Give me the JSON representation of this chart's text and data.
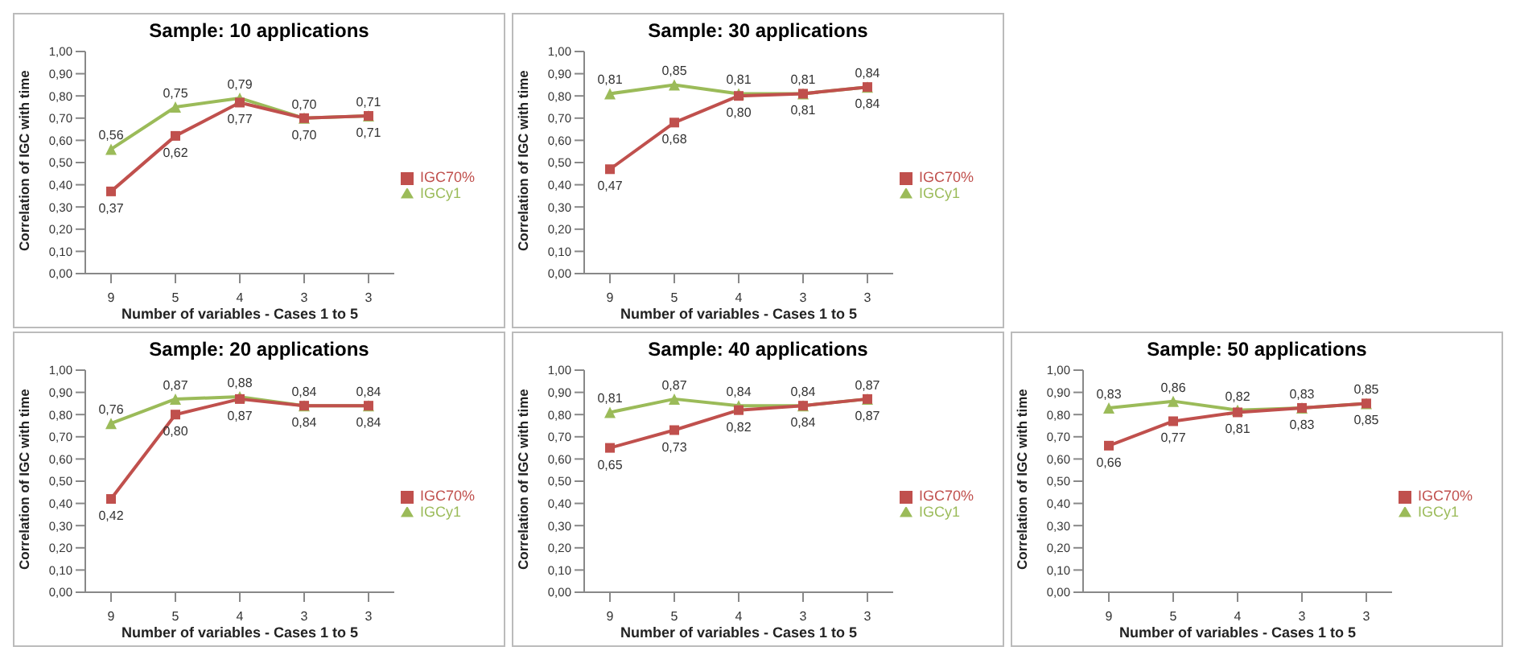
{
  "chart_data": [
    {
      "type": "line",
      "title": "Sample: 10 applications",
      "xlabel": "Number of variables - Cases 1 to 5",
      "ylabel": "Correlation of IGC with time",
      "categories": [
        "9",
        "5",
        "4",
        "3",
        "3"
      ],
      "ylim": [
        0,
        1
      ],
      "yticks": [
        {
          "value": 0,
          "label": "0,00"
        },
        {
          "value": 0.1,
          "label": "0,10"
        },
        {
          "value": 0.2,
          "label": "0,20"
        },
        {
          "value": 0.3,
          "label": "0,30"
        },
        {
          "value": 0.4,
          "label": "0,40"
        },
        {
          "value": 0.5,
          "label": "0,50"
        },
        {
          "value": 0.6,
          "label": "0,60"
        },
        {
          "value": 0.7,
          "label": "0,70"
        },
        {
          "value": 0.8,
          "label": "0,80"
        },
        {
          "value": 0.9,
          "label": "0,90"
        },
        {
          "value": 1,
          "label": "1,00"
        }
      ],
      "legend": "right",
      "series": [
        {
          "name": "IGCy1",
          "color": "#9bbb59",
          "marker": "triangle",
          "values": [
            0.56,
            0.75,
            0.79,
            0.7,
            0.71
          ],
          "value_labels": [
            "0,56",
            "0,75",
            "0,79",
            "0,70",
            "0,71"
          ]
        },
        {
          "name": "IGC70%",
          "color": "#c0504d",
          "marker": "square",
          "values": [
            0.37,
            0.62,
            0.77,
            0.7,
            0.71
          ],
          "value_labels": [
            "0,37",
            "0,62",
            "0,77",
            "0,70",
            "0,71"
          ]
        }
      ]
    },
    {
      "type": "line",
      "title": "Sample: 30 applications",
      "xlabel": "Number of variables - Cases 1 to 5",
      "ylabel": "Correlation of IGC with time",
      "categories": [
        "9",
        "5",
        "4",
        "3",
        "3"
      ],
      "ylim": [
        0,
        1
      ],
      "yticks": [
        {
          "value": 0,
          "label": "0,00"
        },
        {
          "value": 0.1,
          "label": "0,10"
        },
        {
          "value": 0.2,
          "label": "0,20"
        },
        {
          "value": 0.3,
          "label": "0,30"
        },
        {
          "value": 0.4,
          "label": "0,40"
        },
        {
          "value": 0.5,
          "label": "0,50"
        },
        {
          "value": 0.6,
          "label": "0,60"
        },
        {
          "value": 0.7,
          "label": "0,70"
        },
        {
          "value": 0.8,
          "label": "0,80"
        },
        {
          "value": 0.9,
          "label": "0,90"
        },
        {
          "value": 1,
          "label": "1,00"
        }
      ],
      "legend": "right",
      "series": [
        {
          "name": "IGCy1",
          "color": "#9bbb59",
          "marker": "triangle",
          "values": [
            0.81,
            0.85,
            0.81,
            0.81,
            0.84
          ],
          "value_labels": [
            "0,81",
            "0,85",
            "0,81",
            "0,81",
            "0,84"
          ]
        },
        {
          "name": "IGC70%",
          "color": "#c0504d",
          "marker": "square",
          "values": [
            0.47,
            0.68,
            0.8,
            0.81,
            0.84
          ],
          "value_labels": [
            "0,47",
            "0,68",
            "0,80",
            "0,81",
            "0,84"
          ]
        }
      ]
    },
    {
      "type": "line",
      "title": "Sample: 20 applications",
      "xlabel": "Number of variables - Cases 1 to 5",
      "ylabel": "Correlation of IGC with time",
      "categories": [
        "9",
        "5",
        "4",
        "3",
        "3"
      ],
      "ylim": [
        0,
        1
      ],
      "yticks": [
        {
          "value": 0,
          "label": "0,00"
        },
        {
          "value": 0.1,
          "label": "0,10"
        },
        {
          "value": 0.2,
          "label": "0,20"
        },
        {
          "value": 0.3,
          "label": "0,30"
        },
        {
          "value": 0.4,
          "label": "0,40"
        },
        {
          "value": 0.5,
          "label": "0,50"
        },
        {
          "value": 0.6,
          "label": "0,60"
        },
        {
          "value": 0.7,
          "label": "0,70"
        },
        {
          "value": 0.8,
          "label": "0,80"
        },
        {
          "value": 0.9,
          "label": "0,90"
        },
        {
          "value": 1,
          "label": "1,00"
        }
      ],
      "legend": "right",
      "series": [
        {
          "name": "IGCy1",
          "color": "#9bbb59",
          "marker": "triangle",
          "values": [
            0.76,
            0.87,
            0.88,
            0.84,
            0.84
          ],
          "value_labels": [
            "0,76",
            "0,87",
            "0,88",
            "0,84",
            "0,84"
          ]
        },
        {
          "name": "IGC70%",
          "color": "#c0504d",
          "marker": "square",
          "values": [
            0.42,
            0.8,
            0.87,
            0.84,
            0.84
          ],
          "value_labels": [
            "0,42",
            "0,80",
            "0,87",
            "0,84",
            "0,84"
          ]
        }
      ]
    },
    {
      "type": "line",
      "title": "Sample: 40 applications",
      "xlabel": "Number of variables - Cases 1 to 5",
      "ylabel": "Correlation of IGC with time",
      "categories": [
        "9",
        "5",
        "4",
        "3",
        "3"
      ],
      "ylim": [
        0,
        1
      ],
      "yticks": [
        {
          "value": 0,
          "label": "0,00"
        },
        {
          "value": 0.1,
          "label": "0,10"
        },
        {
          "value": 0.2,
          "label": "0,20"
        },
        {
          "value": 0.3,
          "label": "0,30"
        },
        {
          "value": 0.4,
          "label": "0,40"
        },
        {
          "value": 0.5,
          "label": "0,50"
        },
        {
          "value": 0.6,
          "label": "0,60"
        },
        {
          "value": 0.7,
          "label": "0,70"
        },
        {
          "value": 0.8,
          "label": "0,80"
        },
        {
          "value": 0.9,
          "label": "0,90"
        },
        {
          "value": 1,
          "label": "1,00"
        }
      ],
      "legend": "right",
      "series": [
        {
          "name": "IGCy1",
          "color": "#9bbb59",
          "marker": "triangle",
          "values": [
            0.81,
            0.87,
            0.84,
            0.84,
            0.87
          ],
          "value_labels": [
            "0,81",
            "0,87",
            "0,84",
            "0,84",
            "0,87"
          ]
        },
        {
          "name": "IGC70%",
          "color": "#c0504d",
          "marker": "square",
          "values": [
            0.65,
            0.73,
            0.82,
            0.84,
            0.87
          ],
          "value_labels": [
            "0,65",
            "0,73",
            "0,82",
            "0,84",
            "0,87"
          ]
        }
      ]
    },
    {
      "type": "line",
      "title": "Sample: 50 applications",
      "xlabel": "Number of variables - Cases 1 to 5",
      "ylabel": "Correlation of IGC with time",
      "categories": [
        "9",
        "5",
        "4",
        "3",
        "3"
      ],
      "ylim": [
        0,
        1
      ],
      "yticks": [
        {
          "value": 0,
          "label": "0,00"
        },
        {
          "value": 0.1,
          "label": "0,10"
        },
        {
          "value": 0.2,
          "label": "0,20"
        },
        {
          "value": 0.3,
          "label": "0,30"
        },
        {
          "value": 0.4,
          "label": "0,40"
        },
        {
          "value": 0.5,
          "label": "0,50"
        },
        {
          "value": 0.6,
          "label": "0,60"
        },
        {
          "value": 0.7,
          "label": "0,70"
        },
        {
          "value": 0.8,
          "label": "0,80"
        },
        {
          "value": 0.9,
          "label": "0,90"
        },
        {
          "value": 1,
          "label": "1,00"
        }
      ],
      "legend": "right",
      "series": [
        {
          "name": "IGCy1",
          "color": "#9bbb59",
          "marker": "triangle",
          "values": [
            0.83,
            0.86,
            0.82,
            0.83,
            0.85
          ],
          "value_labels": [
            "0,83",
            "0,86",
            "0,82",
            "0,83",
            "0,85"
          ]
        },
        {
          "name": "IGC70%",
          "color": "#c0504d",
          "marker": "square",
          "values": [
            0.66,
            0.77,
            0.81,
            0.83,
            0.85
          ],
          "value_labels": [
            "0,66",
            "0,77",
            "0,81",
            "0,83",
            "0,85"
          ]
        }
      ]
    }
  ]
}
